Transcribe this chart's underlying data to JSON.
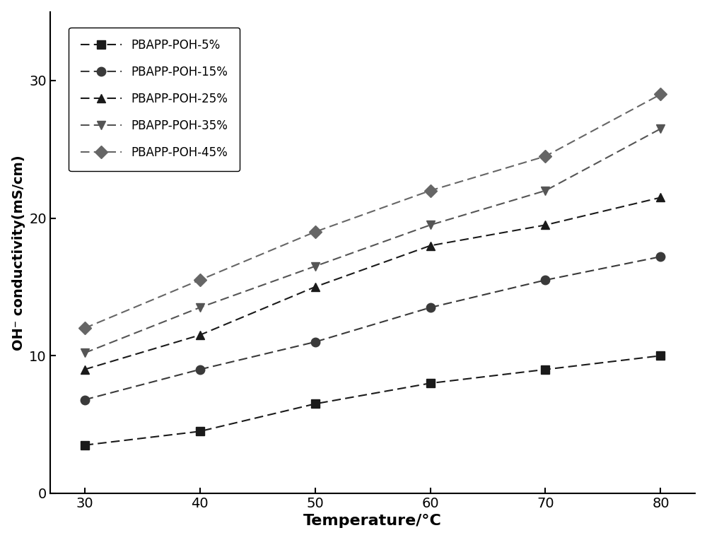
{
  "x": [
    30,
    40,
    50,
    60,
    70,
    80
  ],
  "series": [
    {
      "label": "PBAPP-POH-5%",
      "y": [
        3.5,
        4.5,
        6.5,
        8.0,
        9.0,
        10.0
      ],
      "marker": "s",
      "color": "#1a1a1a",
      "markersize": 9,
      "linestyle": "dashed"
    },
    {
      "label": "PBAPP-POH-15%",
      "y": [
        6.8,
        9.0,
        11.0,
        13.5,
        15.5,
        17.2
      ],
      "marker": "o",
      "color": "#3a3a3a",
      "markersize": 9,
      "linestyle": "dashed"
    },
    {
      "label": "PBAPP-POH-25%",
      "y": [
        9.0,
        11.5,
        15.0,
        18.0,
        19.5,
        21.5
      ],
      "marker": "^",
      "color": "#1a1a1a",
      "markersize": 9,
      "linestyle": "dashed"
    },
    {
      "label": "PBAPP-POH-35%",
      "y": [
        10.2,
        13.5,
        16.5,
        19.5,
        22.0,
        26.5
      ],
      "marker": "v",
      "color": "#555555",
      "markersize": 9,
      "linestyle": "dashed"
    },
    {
      "label": "PBAPP-POH-45%",
      "y": [
        12.0,
        15.5,
        19.0,
        22.0,
        24.5,
        29.0
      ],
      "marker": "D",
      "color": "#666666",
      "markersize": 9,
      "linestyle": "dashed"
    }
  ],
  "xlabel": "Temperature/°C",
  "ylabel": "OH⁻ conductivity(mS/cm)",
  "xlim": [
    27,
    83
  ],
  "ylim": [
    0,
    35
  ],
  "yticks": [
    0,
    10,
    20,
    30
  ],
  "xticks": [
    30,
    40,
    50,
    60,
    70,
    80
  ],
  "xlabel_fontsize": 16,
  "ylabel_fontsize": 14,
  "tick_fontsize": 14,
  "legend_fontsize": 12
}
